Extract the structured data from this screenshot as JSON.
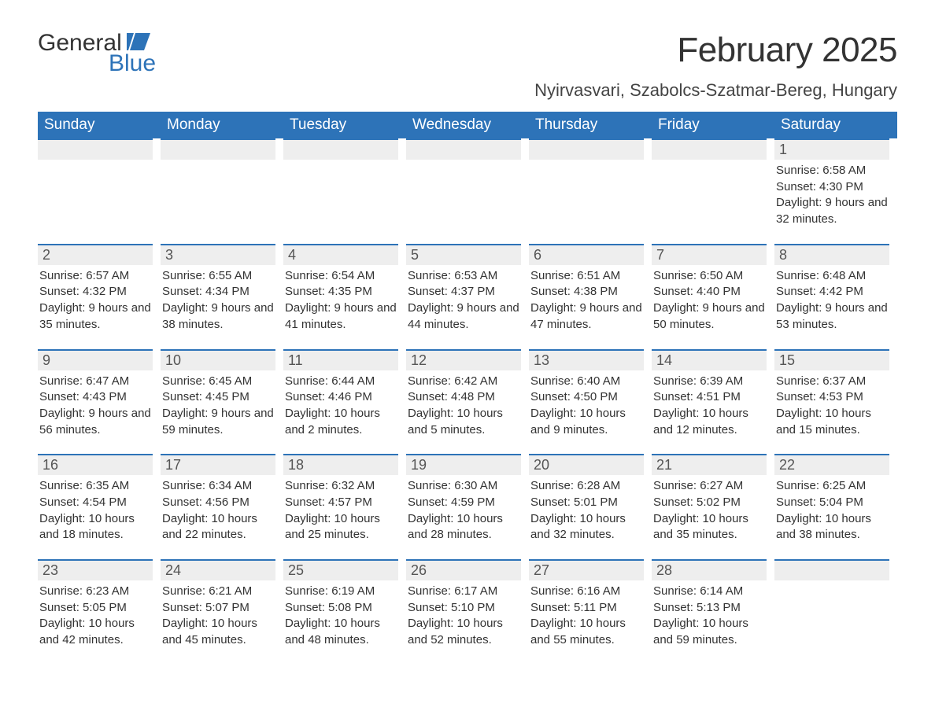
{
  "logo": {
    "top": "General",
    "bottom": "Blue",
    "icon_color": "#2d73b8"
  },
  "title": "February 2025",
  "location": "Nyirvasvari, Szabolcs-Szatmar-Bereg, Hungary",
  "colors": {
    "header_bg": "#2d73b8",
    "header_text": "#ffffff",
    "dayhead_bg": "#eeeeee",
    "dayhead_border": "#2d73b8",
    "body_text": "#333333",
    "page_bg": "#ffffff"
  },
  "fonts": {
    "title_size_pt": 33,
    "location_size_pt": 16,
    "weekday_size_pt": 14,
    "daynum_size_pt": 14,
    "body_size_pt": 11
  },
  "weekdays": [
    "Sunday",
    "Monday",
    "Tuesday",
    "Wednesday",
    "Thursday",
    "Friday",
    "Saturday"
  ],
  "weeks": [
    [
      null,
      null,
      null,
      null,
      null,
      null,
      {
        "n": "1",
        "sunrise": "6:58 AM",
        "sunset": "4:30 PM",
        "daylight": "9 hours and 32 minutes."
      }
    ],
    [
      {
        "n": "2",
        "sunrise": "6:57 AM",
        "sunset": "4:32 PM",
        "daylight": "9 hours and 35 minutes."
      },
      {
        "n": "3",
        "sunrise": "6:55 AM",
        "sunset": "4:34 PM",
        "daylight": "9 hours and 38 minutes."
      },
      {
        "n": "4",
        "sunrise": "6:54 AM",
        "sunset": "4:35 PM",
        "daylight": "9 hours and 41 minutes."
      },
      {
        "n": "5",
        "sunrise": "6:53 AM",
        "sunset": "4:37 PM",
        "daylight": "9 hours and 44 minutes."
      },
      {
        "n": "6",
        "sunrise": "6:51 AM",
        "sunset": "4:38 PM",
        "daylight": "9 hours and 47 minutes."
      },
      {
        "n": "7",
        "sunrise": "6:50 AM",
        "sunset": "4:40 PM",
        "daylight": "9 hours and 50 minutes."
      },
      {
        "n": "8",
        "sunrise": "6:48 AM",
        "sunset": "4:42 PM",
        "daylight": "9 hours and 53 minutes."
      }
    ],
    [
      {
        "n": "9",
        "sunrise": "6:47 AM",
        "sunset": "4:43 PM",
        "daylight": "9 hours and 56 minutes."
      },
      {
        "n": "10",
        "sunrise": "6:45 AM",
        "sunset": "4:45 PM",
        "daylight": "9 hours and 59 minutes."
      },
      {
        "n": "11",
        "sunrise": "6:44 AM",
        "sunset": "4:46 PM",
        "daylight": "10 hours and 2 minutes."
      },
      {
        "n": "12",
        "sunrise": "6:42 AM",
        "sunset": "4:48 PM",
        "daylight": "10 hours and 5 minutes."
      },
      {
        "n": "13",
        "sunrise": "6:40 AM",
        "sunset": "4:50 PM",
        "daylight": "10 hours and 9 minutes."
      },
      {
        "n": "14",
        "sunrise": "6:39 AM",
        "sunset": "4:51 PM",
        "daylight": "10 hours and 12 minutes."
      },
      {
        "n": "15",
        "sunrise": "6:37 AM",
        "sunset": "4:53 PM",
        "daylight": "10 hours and 15 minutes."
      }
    ],
    [
      {
        "n": "16",
        "sunrise": "6:35 AM",
        "sunset": "4:54 PM",
        "daylight": "10 hours and 18 minutes."
      },
      {
        "n": "17",
        "sunrise": "6:34 AM",
        "sunset": "4:56 PM",
        "daylight": "10 hours and 22 minutes."
      },
      {
        "n": "18",
        "sunrise": "6:32 AM",
        "sunset": "4:57 PM",
        "daylight": "10 hours and 25 minutes."
      },
      {
        "n": "19",
        "sunrise": "6:30 AM",
        "sunset": "4:59 PM",
        "daylight": "10 hours and 28 minutes."
      },
      {
        "n": "20",
        "sunrise": "6:28 AM",
        "sunset": "5:01 PM",
        "daylight": "10 hours and 32 minutes."
      },
      {
        "n": "21",
        "sunrise": "6:27 AM",
        "sunset": "5:02 PM",
        "daylight": "10 hours and 35 minutes."
      },
      {
        "n": "22",
        "sunrise": "6:25 AM",
        "sunset": "5:04 PM",
        "daylight": "10 hours and 38 minutes."
      }
    ],
    [
      {
        "n": "23",
        "sunrise": "6:23 AM",
        "sunset": "5:05 PM",
        "daylight": "10 hours and 42 minutes."
      },
      {
        "n": "24",
        "sunrise": "6:21 AM",
        "sunset": "5:07 PM",
        "daylight": "10 hours and 45 minutes."
      },
      {
        "n": "25",
        "sunrise": "6:19 AM",
        "sunset": "5:08 PM",
        "daylight": "10 hours and 48 minutes."
      },
      {
        "n": "26",
        "sunrise": "6:17 AM",
        "sunset": "5:10 PM",
        "daylight": "10 hours and 52 minutes."
      },
      {
        "n": "27",
        "sunrise": "6:16 AM",
        "sunset": "5:11 PM",
        "daylight": "10 hours and 55 minutes."
      },
      {
        "n": "28",
        "sunrise": "6:14 AM",
        "sunset": "5:13 PM",
        "daylight": "10 hours and 59 minutes."
      },
      null
    ]
  ],
  "labels": {
    "sunrise": "Sunrise: ",
    "sunset": "Sunset: ",
    "daylight": "Daylight: "
  }
}
